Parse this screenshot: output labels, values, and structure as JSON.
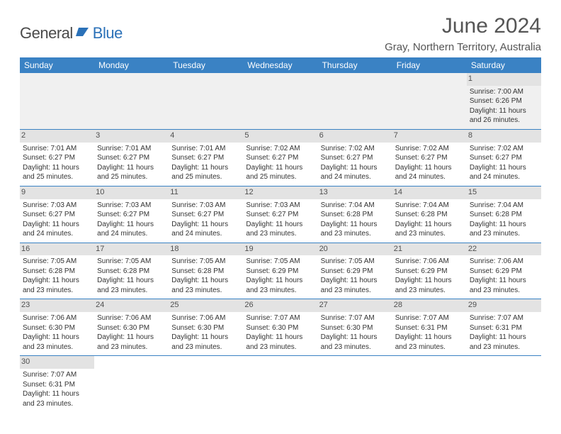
{
  "logo": {
    "text_dark": "General",
    "text_blue": "Blue"
  },
  "title": "June 2024",
  "location": "Gray, Northern Territory, Australia",
  "colors": {
    "header_bg": "#3a82c4",
    "header_text": "#ffffff",
    "daynum_bg": "#e3e3e3",
    "rule": "#3a82c4",
    "body_text": "#333333",
    "title_text": "#555555"
  },
  "day_headers": [
    "Sunday",
    "Monday",
    "Tuesday",
    "Wednesday",
    "Thursday",
    "Friday",
    "Saturday"
  ],
  "weeks": [
    [
      null,
      null,
      null,
      null,
      null,
      null,
      {
        "n": "1",
        "sr": "7:00 AM",
        "ss": "6:26 PM",
        "dl": "11 hours and 26 minutes."
      }
    ],
    [
      {
        "n": "2",
        "sr": "7:01 AM",
        "ss": "6:27 PM",
        "dl": "11 hours and 25 minutes."
      },
      {
        "n": "3",
        "sr": "7:01 AM",
        "ss": "6:27 PM",
        "dl": "11 hours and 25 minutes."
      },
      {
        "n": "4",
        "sr": "7:01 AM",
        "ss": "6:27 PM",
        "dl": "11 hours and 25 minutes."
      },
      {
        "n": "5",
        "sr": "7:02 AM",
        "ss": "6:27 PM",
        "dl": "11 hours and 25 minutes."
      },
      {
        "n": "6",
        "sr": "7:02 AM",
        "ss": "6:27 PM",
        "dl": "11 hours and 24 minutes."
      },
      {
        "n": "7",
        "sr": "7:02 AM",
        "ss": "6:27 PM",
        "dl": "11 hours and 24 minutes."
      },
      {
        "n": "8",
        "sr": "7:02 AM",
        "ss": "6:27 PM",
        "dl": "11 hours and 24 minutes."
      }
    ],
    [
      {
        "n": "9",
        "sr": "7:03 AM",
        "ss": "6:27 PM",
        "dl": "11 hours and 24 minutes."
      },
      {
        "n": "10",
        "sr": "7:03 AM",
        "ss": "6:27 PM",
        "dl": "11 hours and 24 minutes."
      },
      {
        "n": "11",
        "sr": "7:03 AM",
        "ss": "6:27 PM",
        "dl": "11 hours and 24 minutes."
      },
      {
        "n": "12",
        "sr": "7:03 AM",
        "ss": "6:27 PM",
        "dl": "11 hours and 23 minutes."
      },
      {
        "n": "13",
        "sr": "7:04 AM",
        "ss": "6:28 PM",
        "dl": "11 hours and 23 minutes."
      },
      {
        "n": "14",
        "sr": "7:04 AM",
        "ss": "6:28 PM",
        "dl": "11 hours and 23 minutes."
      },
      {
        "n": "15",
        "sr": "7:04 AM",
        "ss": "6:28 PM",
        "dl": "11 hours and 23 minutes."
      }
    ],
    [
      {
        "n": "16",
        "sr": "7:05 AM",
        "ss": "6:28 PM",
        "dl": "11 hours and 23 minutes."
      },
      {
        "n": "17",
        "sr": "7:05 AM",
        "ss": "6:28 PM",
        "dl": "11 hours and 23 minutes."
      },
      {
        "n": "18",
        "sr": "7:05 AM",
        "ss": "6:28 PM",
        "dl": "11 hours and 23 minutes."
      },
      {
        "n": "19",
        "sr": "7:05 AM",
        "ss": "6:29 PM",
        "dl": "11 hours and 23 minutes."
      },
      {
        "n": "20",
        "sr": "7:05 AM",
        "ss": "6:29 PM",
        "dl": "11 hours and 23 minutes."
      },
      {
        "n": "21",
        "sr": "7:06 AM",
        "ss": "6:29 PM",
        "dl": "11 hours and 23 minutes."
      },
      {
        "n": "22",
        "sr": "7:06 AM",
        "ss": "6:29 PM",
        "dl": "11 hours and 23 minutes."
      }
    ],
    [
      {
        "n": "23",
        "sr": "7:06 AM",
        "ss": "6:30 PM",
        "dl": "11 hours and 23 minutes."
      },
      {
        "n": "24",
        "sr": "7:06 AM",
        "ss": "6:30 PM",
        "dl": "11 hours and 23 minutes."
      },
      {
        "n": "25",
        "sr": "7:06 AM",
        "ss": "6:30 PM",
        "dl": "11 hours and 23 minutes."
      },
      {
        "n": "26",
        "sr": "7:07 AM",
        "ss": "6:30 PM",
        "dl": "11 hours and 23 minutes."
      },
      {
        "n": "27",
        "sr": "7:07 AM",
        "ss": "6:30 PM",
        "dl": "11 hours and 23 minutes."
      },
      {
        "n": "28",
        "sr": "7:07 AM",
        "ss": "6:31 PM",
        "dl": "11 hours and 23 minutes."
      },
      {
        "n": "29",
        "sr": "7:07 AM",
        "ss": "6:31 PM",
        "dl": "11 hours and 23 minutes."
      }
    ],
    [
      {
        "n": "30",
        "sr": "7:07 AM",
        "ss": "6:31 PM",
        "dl": "11 hours and 23 minutes."
      },
      null,
      null,
      null,
      null,
      null,
      null
    ]
  ],
  "labels": {
    "sunrise": "Sunrise:",
    "sunset": "Sunset:",
    "daylight": "Daylight:"
  }
}
